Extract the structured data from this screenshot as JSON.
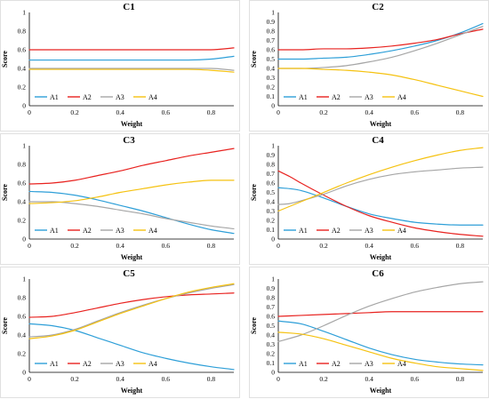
{
  "chart_data": [
    {
      "type": "line",
      "title": "C1",
      "xlabel": "Weight",
      "ylabel": "Score",
      "xlim": [
        0,
        0.9
      ],
      "ylim": [
        0,
        1
      ],
      "xticks": [
        "0",
        "0.2",
        "0.4",
        "0.6",
        "0.8"
      ],
      "yticks": [
        "0",
        "0.2",
        "0.4",
        "0.6",
        "0.8",
        "1"
      ],
      "legend": "bottom-left",
      "x": [
        0,
        0.1,
        0.2,
        0.3,
        0.4,
        0.5,
        0.6,
        0.7,
        0.8,
        0.9
      ],
      "series": [
        {
          "name": "A1",
          "color": "#2e9fd8",
          "values": [
            0.49,
            0.49,
            0.49,
            0.49,
            0.49,
            0.49,
            0.49,
            0.49,
            0.5,
            0.53
          ]
        },
        {
          "name": "A2",
          "color": "#e8221f",
          "values": [
            0.6,
            0.6,
            0.6,
            0.6,
            0.6,
            0.6,
            0.6,
            0.6,
            0.6,
            0.62
          ]
        },
        {
          "name": "A3",
          "color": "#a6a6a6",
          "values": [
            0.4,
            0.4,
            0.4,
            0.4,
            0.4,
            0.4,
            0.4,
            0.4,
            0.4,
            0.38
          ]
        },
        {
          "name": "A4",
          "color": "#f5c211",
          "values": [
            0.39,
            0.39,
            0.39,
            0.39,
            0.39,
            0.39,
            0.39,
            0.39,
            0.38,
            0.36
          ]
        }
      ]
    },
    {
      "type": "line",
      "title": "C2",
      "xlabel": "Weight",
      "ylabel": "Score",
      "xlim": [
        0,
        0.9
      ],
      "ylim": [
        0,
        1
      ],
      "xticks": [
        "0",
        "0.2",
        "0.4",
        "0.6",
        "0.8"
      ],
      "yticks": [
        "0",
        "0.1",
        "0.2",
        "0.3",
        "0.4",
        "0.5",
        "0.6",
        "0.7",
        "0.8",
        "0.9",
        "1"
      ],
      "legend": "bottom-left",
      "x": [
        0,
        0.1,
        0.2,
        0.3,
        0.4,
        0.5,
        0.6,
        0.7,
        0.8,
        0.9
      ],
      "series": [
        {
          "name": "A1",
          "color": "#2e9fd8",
          "values": [
            0.5,
            0.5,
            0.51,
            0.52,
            0.55,
            0.59,
            0.64,
            0.7,
            0.78,
            0.88
          ]
        },
        {
          "name": "A2",
          "color": "#e8221f",
          "values": [
            0.6,
            0.6,
            0.61,
            0.61,
            0.62,
            0.64,
            0.67,
            0.71,
            0.77,
            0.82
          ]
        },
        {
          "name": "A3",
          "color": "#a6a6a6",
          "values": [
            0.4,
            0.4,
            0.41,
            0.43,
            0.47,
            0.52,
            0.59,
            0.67,
            0.76,
            0.85
          ]
        },
        {
          "name": "A4",
          "color": "#f5c211",
          "values": [
            0.4,
            0.4,
            0.39,
            0.38,
            0.36,
            0.33,
            0.28,
            0.22,
            0.16,
            0.1
          ]
        }
      ]
    },
    {
      "type": "line",
      "title": "C3",
      "xlabel": "Weight",
      "ylabel": "Score",
      "xlim": [
        0,
        0.9
      ],
      "ylim": [
        0,
        1
      ],
      "xticks": [
        "0",
        "0.2",
        "0.4",
        "0.6",
        "0.8"
      ],
      "yticks": [
        "0",
        "0.2",
        "0.4",
        "0.6",
        "0.8",
        "1"
      ],
      "legend": "bottom-left",
      "x": [
        0,
        0.1,
        0.2,
        0.3,
        0.4,
        0.5,
        0.6,
        0.7,
        0.8,
        0.9
      ],
      "series": [
        {
          "name": "A1",
          "color": "#2e9fd8",
          "values": [
            0.51,
            0.5,
            0.47,
            0.42,
            0.36,
            0.3,
            0.23,
            0.16,
            0.1,
            0.06
          ]
        },
        {
          "name": "A2",
          "color": "#e8221f",
          "values": [
            0.59,
            0.6,
            0.63,
            0.68,
            0.73,
            0.79,
            0.84,
            0.89,
            0.93,
            0.97
          ]
        },
        {
          "name": "A3",
          "color": "#a6a6a6",
          "values": [
            0.4,
            0.4,
            0.38,
            0.35,
            0.31,
            0.27,
            0.22,
            0.18,
            0.14,
            0.11
          ]
        },
        {
          "name": "A4",
          "color": "#f5c211",
          "values": [
            0.38,
            0.39,
            0.41,
            0.45,
            0.5,
            0.54,
            0.58,
            0.61,
            0.63,
            0.63
          ]
        }
      ]
    },
    {
      "type": "line",
      "title": "C4",
      "xlabel": "Weight",
      "ylabel": "Score",
      "xlim": [
        0,
        0.9
      ],
      "ylim": [
        0,
        1
      ],
      "xticks": [
        "0",
        "0.2",
        "0.4",
        "0.6",
        "0.8"
      ],
      "yticks": [
        "0",
        "0.1",
        "0.2",
        "0.3",
        "0.4",
        "0.5",
        "0.6",
        "0.7",
        "0.8",
        "0.9",
        "1"
      ],
      "legend": "bottom-left",
      "x": [
        0,
        0.05,
        0.1,
        0.2,
        0.3,
        0.4,
        0.5,
        0.6,
        0.7,
        0.8,
        0.9
      ],
      "series": [
        {
          "name": "A1",
          "color": "#2e9fd8",
          "values": [
            0.55,
            0.54,
            0.52,
            0.44,
            0.35,
            0.27,
            0.22,
            0.18,
            0.16,
            0.15,
            0.15
          ]
        },
        {
          "name": "A2",
          "color": "#e8221f",
          "values": [
            0.73,
            0.67,
            0.6,
            0.47,
            0.35,
            0.25,
            0.18,
            0.12,
            0.08,
            0.05,
            0.03
          ]
        },
        {
          "name": "A3",
          "color": "#a6a6a6",
          "values": [
            0.37,
            0.38,
            0.41,
            0.48,
            0.57,
            0.64,
            0.69,
            0.72,
            0.74,
            0.76,
            0.77
          ]
        },
        {
          "name": "A4",
          "color": "#f5c211",
          "values": [
            0.3,
            0.35,
            0.4,
            0.5,
            0.6,
            0.69,
            0.77,
            0.84,
            0.9,
            0.95,
            0.98
          ]
        }
      ]
    },
    {
      "type": "line",
      "title": "C5",
      "xlabel": "Weight",
      "ylabel": "Score",
      "xlim": [
        0,
        0.9
      ],
      "ylim": [
        0,
        1
      ],
      "xticks": [
        "0",
        "0.2",
        "0.4",
        "0.6",
        "0.8"
      ],
      "yticks": [
        "0",
        "0.2",
        "0.4",
        "0.6",
        "0.8",
        "1"
      ],
      "legend": "bottom-left",
      "x": [
        0,
        0.1,
        0.2,
        0.3,
        0.4,
        0.5,
        0.6,
        0.7,
        0.8,
        0.9
      ],
      "series": [
        {
          "name": "A1",
          "color": "#2e9fd8",
          "values": [
            0.52,
            0.5,
            0.45,
            0.37,
            0.29,
            0.21,
            0.15,
            0.1,
            0.06,
            0.03
          ]
        },
        {
          "name": "A2",
          "color": "#e8221f",
          "values": [
            0.59,
            0.6,
            0.64,
            0.69,
            0.74,
            0.78,
            0.81,
            0.83,
            0.84,
            0.85
          ]
        },
        {
          "name": "A3",
          "color": "#a6a6a6",
          "values": [
            0.38,
            0.4,
            0.46,
            0.55,
            0.64,
            0.72,
            0.79,
            0.85,
            0.9,
            0.94
          ]
        },
        {
          "name": "A4",
          "color": "#f5c211",
          "values": [
            0.36,
            0.39,
            0.45,
            0.54,
            0.63,
            0.71,
            0.79,
            0.86,
            0.91,
            0.95
          ]
        }
      ]
    },
    {
      "type": "line",
      "title": "C6",
      "xlabel": "Weight",
      "ylabel": "Score",
      "xlim": [
        0,
        0.9
      ],
      "ylim": [
        0,
        1
      ],
      "xticks": [
        "0",
        "0.2",
        "0.4",
        "0.6",
        "0.8"
      ],
      "yticks": [
        "0",
        "0.1",
        "0.2",
        "0.3",
        "0.4",
        "0.5",
        "0.6",
        "0.7",
        "0.8",
        "0.9",
        "1"
      ],
      "legend": "bottom-left",
      "x": [
        0,
        0.1,
        0.2,
        0.3,
        0.4,
        0.5,
        0.6,
        0.7,
        0.8,
        0.9
      ],
      "series": [
        {
          "name": "A1",
          "color": "#2e9fd8",
          "values": [
            0.55,
            0.52,
            0.44,
            0.35,
            0.26,
            0.19,
            0.14,
            0.11,
            0.09,
            0.08
          ]
        },
        {
          "name": "A2",
          "color": "#e8221f",
          "values": [
            0.6,
            0.61,
            0.62,
            0.63,
            0.64,
            0.65,
            0.65,
            0.65,
            0.65,
            0.65
          ]
        },
        {
          "name": "A3",
          "color": "#a6a6a6",
          "values": [
            0.33,
            0.4,
            0.5,
            0.61,
            0.71,
            0.79,
            0.86,
            0.91,
            0.95,
            0.97
          ]
        },
        {
          "name": "A4",
          "color": "#f5c211",
          "values": [
            0.43,
            0.41,
            0.36,
            0.29,
            0.22,
            0.15,
            0.1,
            0.06,
            0.04,
            0.02
          ]
        }
      ]
    }
  ]
}
